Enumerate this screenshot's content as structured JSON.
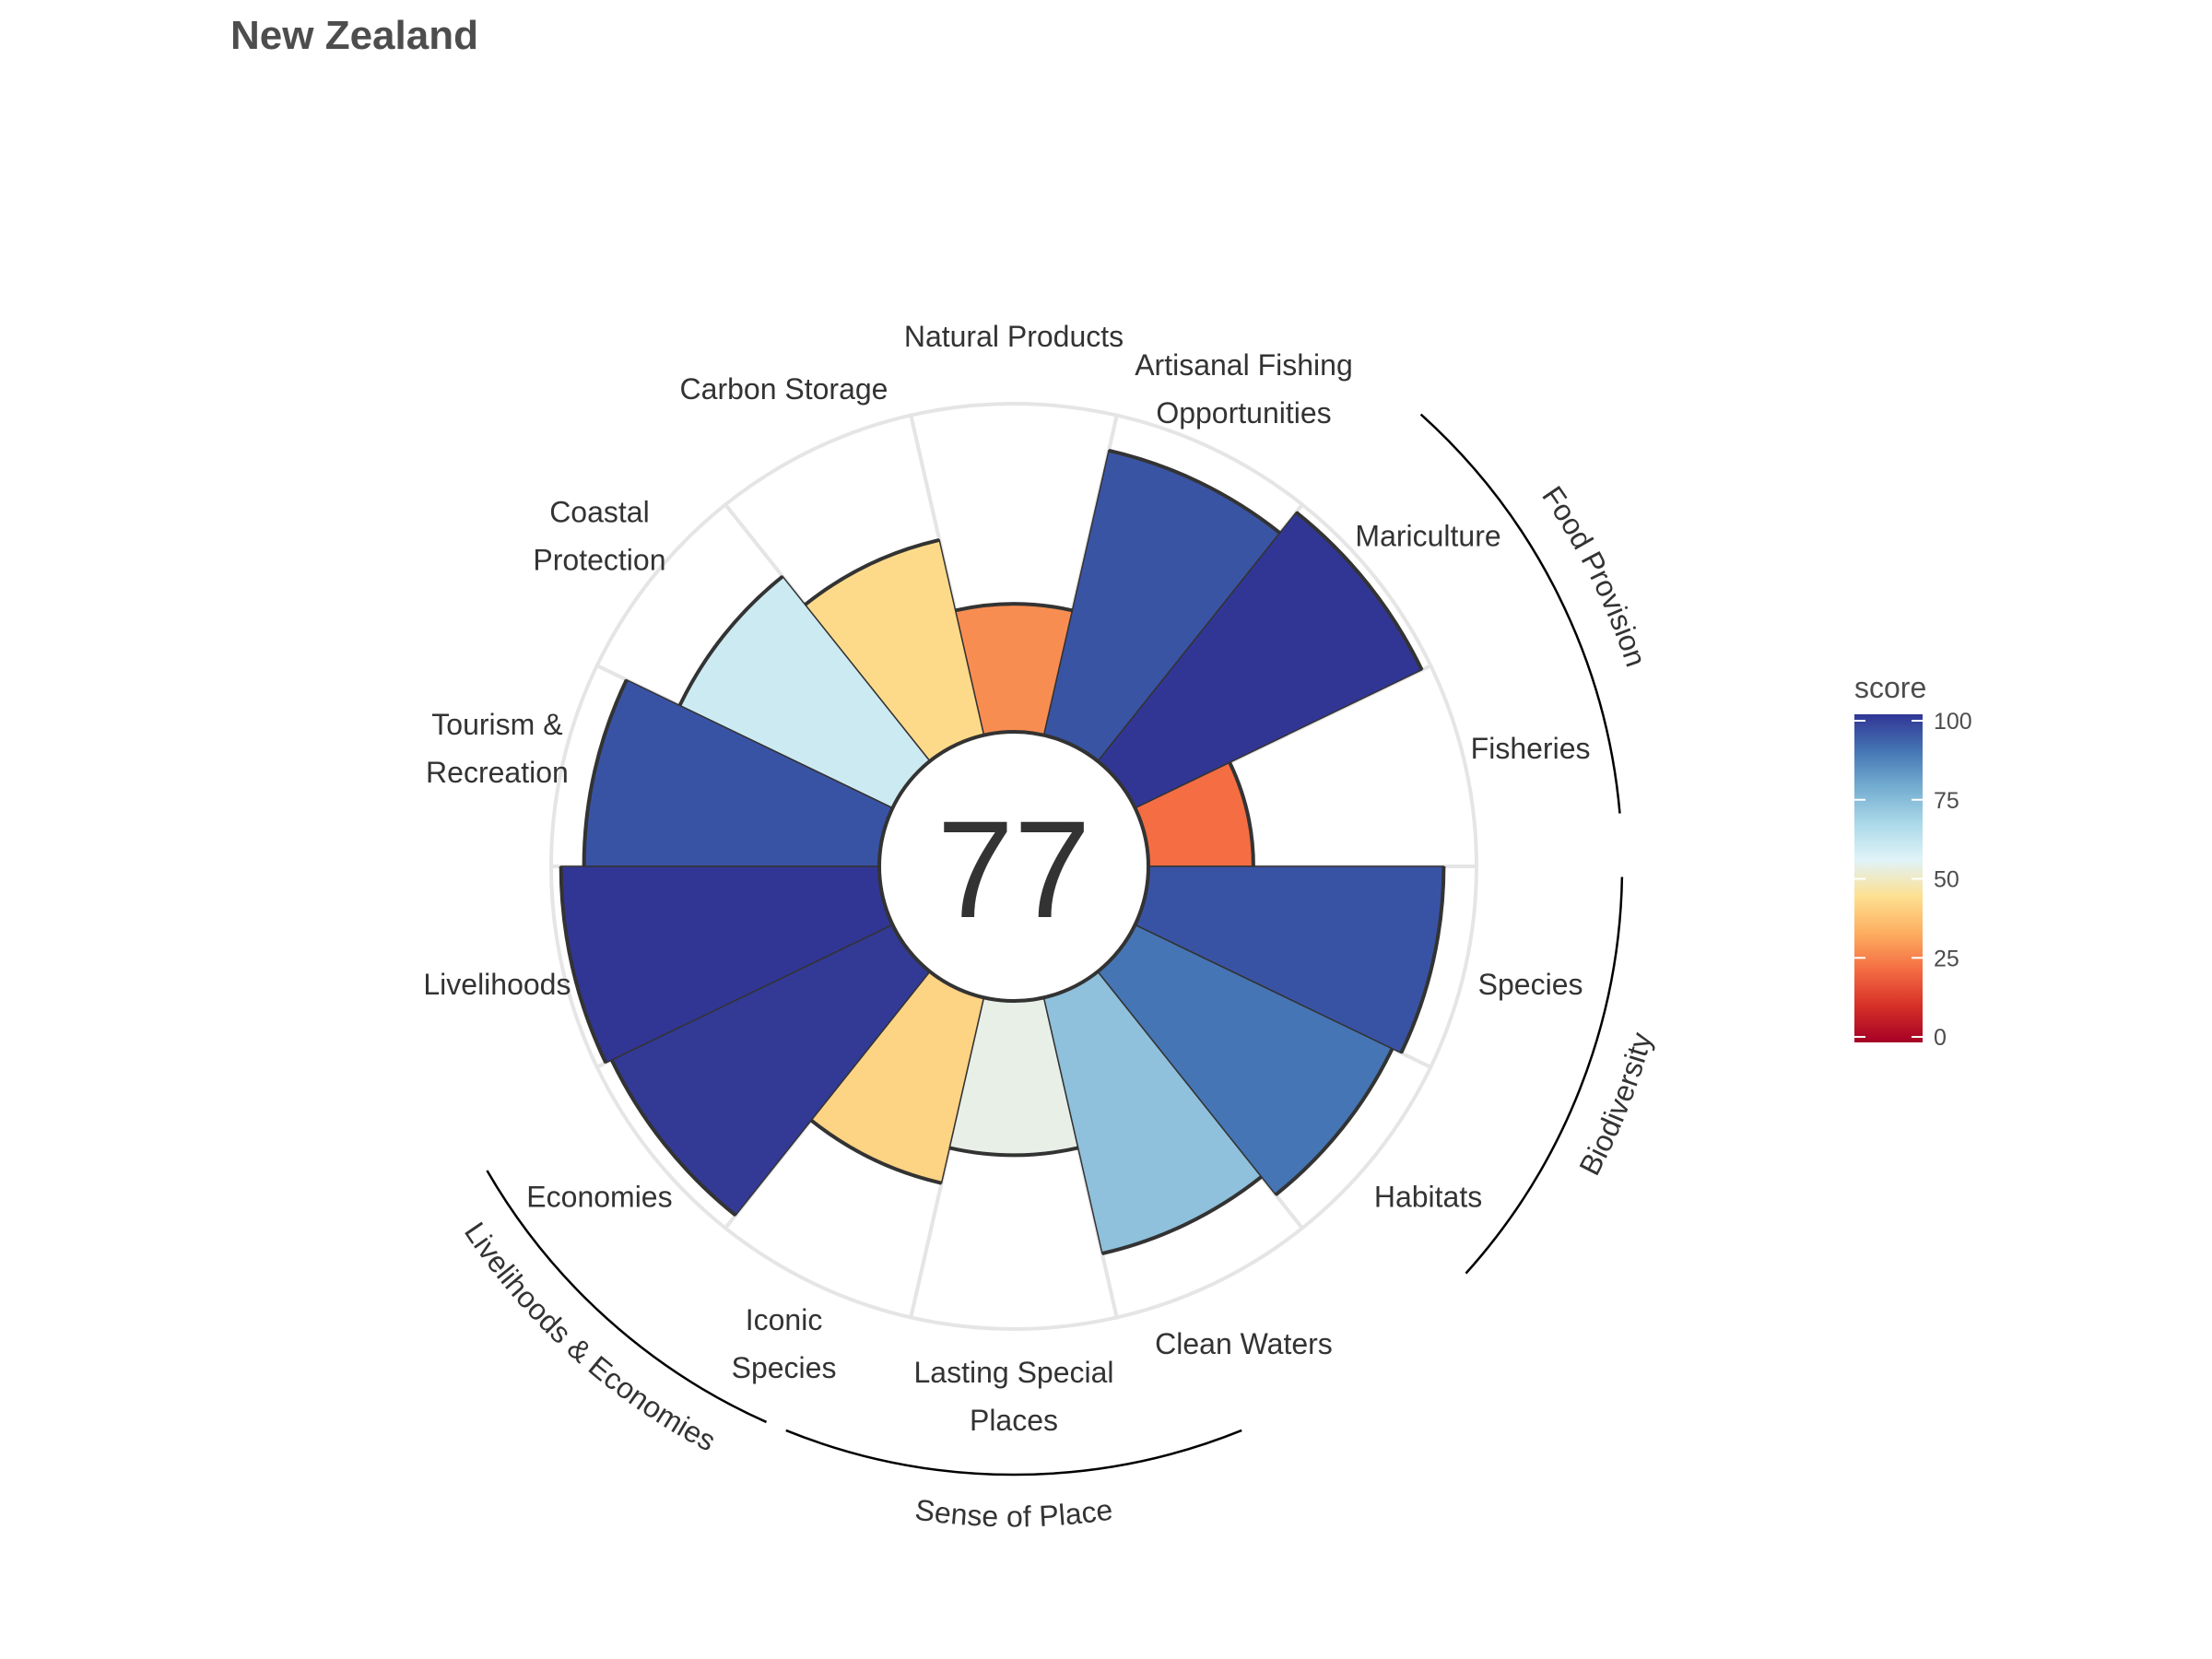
{
  "title": "New Zealand",
  "chart_data": {
    "type": "bar",
    "polar": true,
    "overall_score": "77",
    "ylim": [
      0,
      100
    ],
    "categories": [
      "Fisheries",
      "Mariculture",
      "Artisanal Fishing Opportunities",
      "Natural Products",
      "Carbon Storage",
      "Coastal Protection",
      "Tourism & Recreation",
      "Livelihoods",
      "Economies",
      "Iconic Species",
      "Lasting Special Places",
      "Clean Waters",
      "Habitats",
      "Species"
    ],
    "labels": [
      [
        "Fisheries"
      ],
      [
        "Mariculture"
      ],
      [
        "Artisanal Fishing",
        "Opportunities"
      ],
      [
        "Natural Products"
      ],
      [
        "Carbon Storage"
      ],
      [
        "Coastal",
        "Protection"
      ],
      [
        "Tourism &",
        "Recreation"
      ],
      [
        "Livelihoods"
      ],
      [
        "Economies"
      ],
      [
        "Iconic",
        "Species"
      ],
      [
        "Lasting Special",
        "Places"
      ],
      [
        "Clean Waters"
      ],
      [
        "Habitats"
      ],
      [
        "Species"
      ]
    ],
    "values": [
      32,
      97,
      89,
      39,
      61,
      72,
      90,
      97,
      95,
      58,
      47,
      80,
      87,
      90
    ],
    "colors": [
      "#f46d43",
      "#313695",
      "#3a54a4",
      "#f88d52",
      "#fdda8a",
      "#cceaf1",
      "#3953a4",
      "#313695",
      "#323a96",
      "#fdd384",
      "#e7efe7",
      "#8fc0dc",
      "#4575b4",
      "#3953a4"
    ],
    "groups": [
      {
        "name": "Food Provision"
      },
      {
        "name": "Biodiversity"
      },
      {
        "name": "Sense of Place"
      },
      {
        "name": "Livelihoods & Economies"
      }
    ],
    "legend": {
      "title": "score",
      "ticks": [
        "0",
        "25",
        "50",
        "75",
        "100"
      ],
      "colors": [
        "#a50026",
        "#d73027",
        "#f46d43",
        "#fdae61",
        "#fee090",
        "#e0f3f8",
        "#abd9e9",
        "#74add1",
        "#4575b4",
        "#313695"
      ]
    }
  }
}
